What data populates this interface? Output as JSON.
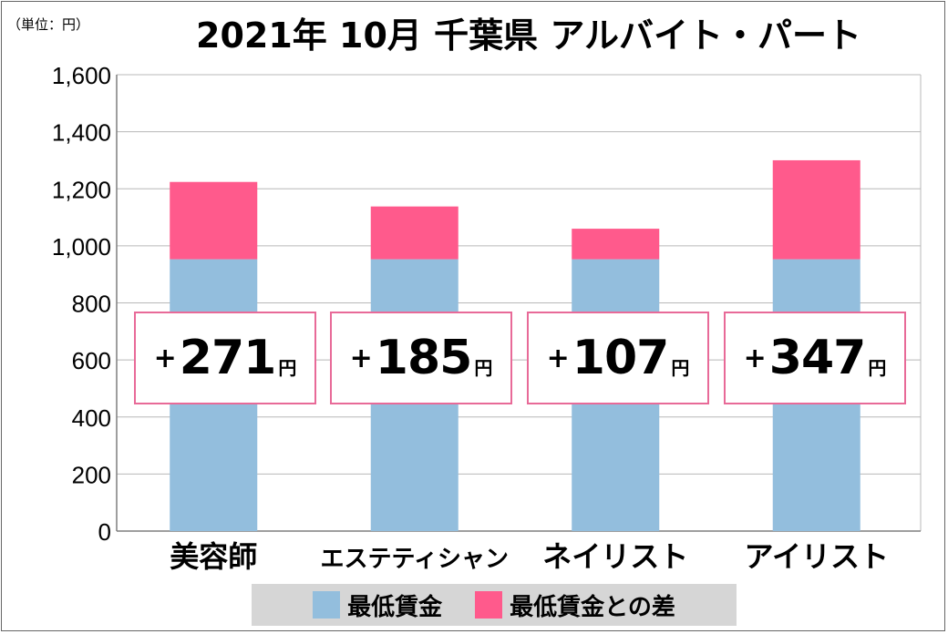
{
  "unit_note": "（単位：円）",
  "title": "2021年 10月 千葉県 アルバイト・パート",
  "colors": {
    "min_wage": "#93bedd",
    "diff": "#ff5a8c",
    "grid": "#b8b8b8",
    "callout_border": "#e86a98"
  },
  "callouts": [
    {
      "sign": "+",
      "value": "271",
      "unit": "円"
    },
    {
      "sign": "+",
      "value": "185",
      "unit": "円"
    },
    {
      "sign": "+",
      "value": "107",
      "unit": "円"
    },
    {
      "sign": "+",
      "value": "347",
      "unit": "円"
    }
  ],
  "chart_data": {
    "type": "bar",
    "stacked": true,
    "title": "2021年 10月 千葉県 アルバイト・パート",
    "categories": [
      "美容師",
      "エステティシャン",
      "ネイリスト",
      "アイリスト"
    ],
    "series": [
      {
        "name": "最低賃金",
        "values": [
          953,
          953,
          953,
          953
        ]
      },
      {
        "name": "最低賃金との差",
        "values": [
          271,
          185,
          107,
          347
        ]
      }
    ],
    "ylim": [
      0,
      1600
    ],
    "yticks": [
      0,
      200,
      400,
      600,
      800,
      1000,
      1200,
      1400,
      1600
    ],
    "ytick_labels": [
      "0",
      "200",
      "400",
      "600",
      "800",
      "1,000",
      "1,200",
      "1,400",
      "1,600"
    ],
    "xlabel": "",
    "ylabel": "",
    "grid": true,
    "legend_position": "bottom"
  }
}
